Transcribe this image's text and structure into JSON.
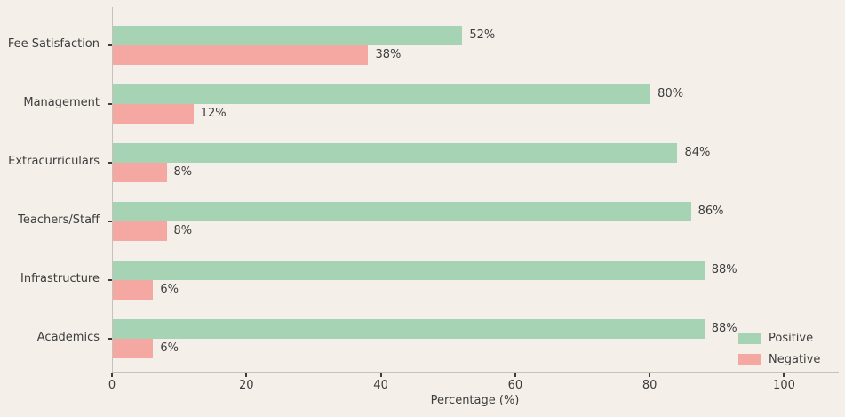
{
  "colors": {
    "background": "#f4efe9",
    "positive": "#a7d3b5",
    "negative": "#f5a8a2",
    "spine": "#c6c1bb",
    "tick": "#3d3d3d",
    "text": "#3d3d3d"
  },
  "chart_data": {
    "type": "bar",
    "orientation": "horizontal",
    "title": "",
    "xlabel": "Percentage (%)",
    "ylabel": "",
    "categories": [
      "Fee Satisfaction",
      "Management",
      "Extracurriculars",
      "Teachers/Staff",
      "Infrastructure",
      "Academics"
    ],
    "series": [
      {
        "name": "Positive",
        "color": "#a7d3b5",
        "values": [
          52,
          80,
          84,
          86,
          88,
          88
        ],
        "labels": [
          "52%",
          "80%",
          "84%",
          "86%",
          "88%",
          "88%"
        ]
      },
      {
        "name": "Negative",
        "color": "#f5a8a2",
        "values": [
          38,
          12,
          8,
          8,
          6,
          6
        ],
        "labels": [
          "38%",
          "12%",
          "8%",
          "8%",
          "6%",
          "6%"
        ]
      }
    ],
    "x_ticks": {
      "values": [
        0,
        20,
        40,
        60,
        80,
        100
      ],
      "labels": [
        "0",
        "20",
        "40",
        "60",
        "80",
        "100"
      ]
    },
    "xlim": [
      0,
      108
    ],
    "grid": false,
    "legend": {
      "position": "lower right",
      "entries": [
        {
          "label": "Positive",
          "color": "#a7d3b5"
        },
        {
          "label": "Negative",
          "color": "#f5a8a2"
        }
      ]
    }
  }
}
